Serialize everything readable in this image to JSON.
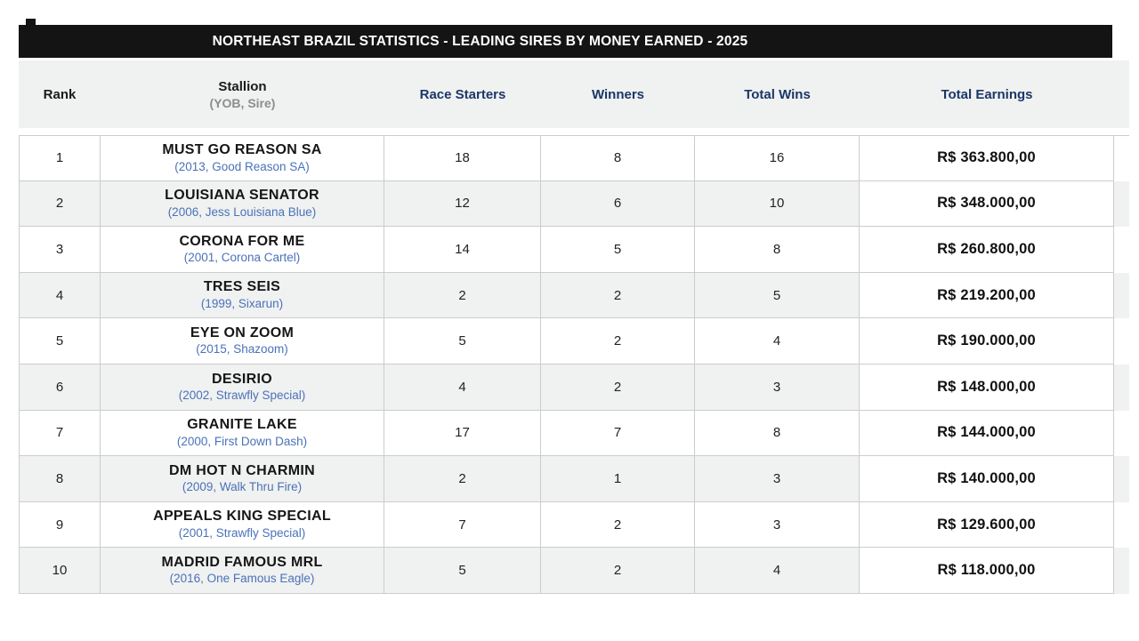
{
  "title": "NORTHEAST BRAZIL STATISTICS - LEADING SIRES BY MONEY EARNED - 2025",
  "colors": {
    "title_bar_bg": "#141414",
    "title_text": "#ffffff",
    "header_band_bg": "#f0f1f1",
    "header_blue_text": "#1b3767",
    "header_sub_gray": "#8d8d8d",
    "stallion_detail_blue": "#4a72b8",
    "row_stripe": "#f0f1f1",
    "cell_border": "#cccccc"
  },
  "columns": {
    "rank": "Rank",
    "stallion": "Stallion",
    "stallion_sub": "(YOB, Sire)",
    "starters": "Race Starters",
    "winners": "Winners",
    "wins": "Total Wins",
    "earnings": "Total Earnings"
  },
  "rows": [
    {
      "rank": "1",
      "name": "MUST GO REASON SA",
      "detail": "(2013, Good Reason SA)",
      "starters": "18",
      "winners": "8",
      "wins": "16",
      "earnings": "R$ 363.800,00"
    },
    {
      "rank": "2",
      "name": "LOUISIANA SENATOR",
      "detail": "(2006, Jess Louisiana Blue)",
      "starters": "12",
      "winners": "6",
      "wins": "10",
      "earnings": "R$ 348.000,00"
    },
    {
      "rank": "3",
      "name": "CORONA FOR ME",
      "detail": "(2001, Corona Cartel)",
      "starters": "14",
      "winners": "5",
      "wins": "8",
      "earnings": "R$ 260.800,00"
    },
    {
      "rank": "4",
      "name": "TRES SEIS",
      "detail": "(1999, Sixarun)",
      "starters": "2",
      "winners": "2",
      "wins": "5",
      "earnings": "R$ 219.200,00"
    },
    {
      "rank": "5",
      "name": "EYE ON ZOOM",
      "detail": "(2015, Shazoom)",
      "starters": "5",
      "winners": "2",
      "wins": "4",
      "earnings": "R$ 190.000,00"
    },
    {
      "rank": "6",
      "name": "DESIRIO",
      "detail": "(2002, Strawfly Special)",
      "starters": "4",
      "winners": "2",
      "wins": "3",
      "earnings": "R$ 148.000,00"
    },
    {
      "rank": "7",
      "name": "GRANITE LAKE",
      "detail": "(2000, First Down Dash)",
      "starters": "17",
      "winners": "7",
      "wins": "8",
      "earnings": "R$ 144.000,00"
    },
    {
      "rank": "8",
      "name": "DM HOT N CHARMIN",
      "detail": "(2009, Walk Thru Fire)",
      "starters": "2",
      "winners": "1",
      "wins": "3",
      "earnings": "R$ 140.000,00"
    },
    {
      "rank": "9",
      "name": "APPEALS KING SPECIAL",
      "detail": "(2001, Strawfly Special)",
      "starters": "7",
      "winners": "2",
      "wins": "3",
      "earnings": "R$ 129.600,00"
    },
    {
      "rank": "10",
      "name": "MADRID FAMOUS MRL",
      "detail": "(2016, One Famous Eagle)",
      "starters": "5",
      "winners": "2",
      "wins": "4",
      "earnings": "R$ 118.000,00"
    }
  ],
  "chart_data": {
    "type": "table",
    "title": "NORTHEAST BRAZIL STATISTICS - LEADING SIRES BY MONEY EARNED - 2025",
    "columns": [
      "Rank",
      "Stallion (YOB, Sire)",
      "Race Starters",
      "Winners",
      "Total Wins",
      "Total Earnings"
    ],
    "rows": [
      [
        1,
        "MUST GO REASON SA (2013, Good Reason SA)",
        18,
        8,
        16,
        "R$ 363.800,00"
      ],
      [
        2,
        "LOUISIANA SENATOR (2006, Jess Louisiana Blue)",
        12,
        6,
        10,
        "R$ 348.000,00"
      ],
      [
        3,
        "CORONA FOR ME (2001, Corona Cartel)",
        14,
        5,
        8,
        "R$ 260.800,00"
      ],
      [
        4,
        "TRES SEIS (1999, Sixarun)",
        2,
        2,
        5,
        "R$ 219.200,00"
      ],
      [
        5,
        "EYE ON ZOOM (2015, Shazoom)",
        5,
        2,
        4,
        "R$ 190.000,00"
      ],
      [
        6,
        "DESIRIO (2002, Strawfly Special)",
        4,
        2,
        3,
        "R$ 148.000,00"
      ],
      [
        7,
        "GRANITE LAKE (2000, First Down Dash)",
        17,
        7,
        8,
        "R$ 144.000,00"
      ],
      [
        8,
        "DM HOT N CHARMIN (2009, Walk Thru Fire)",
        2,
        1,
        3,
        "R$ 140.000,00"
      ],
      [
        9,
        "APPEALS KING SPECIAL (2001, Strawfly Special)",
        7,
        2,
        3,
        "R$ 129.600,00"
      ],
      [
        10,
        "MADRID FAMOUS MRL (2016, One Famous Eagle)",
        5,
        2,
        4,
        "R$ 118.000,00"
      ]
    ]
  }
}
